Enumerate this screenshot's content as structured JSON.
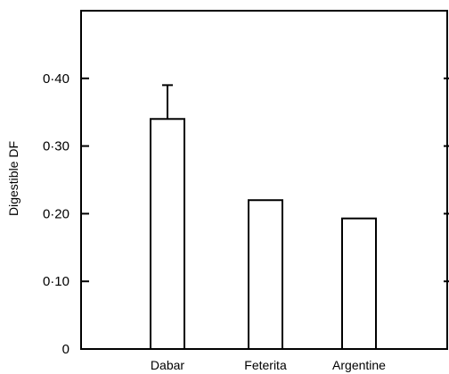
{
  "chart_data": {
    "type": "bar",
    "title": "",
    "xlabel": "",
    "ylabel": "Digestible DF",
    "categories": [
      "Dabar",
      "Feterita",
      "Argentine"
    ],
    "values": [
      0.34,
      0.22,
      0.193
    ],
    "error_bars": [
      0.05,
      null,
      null
    ],
    "ylim": [
      0,
      0.5
    ],
    "yticks": [
      0,
      0.1,
      0.2,
      0.3,
      0.4
    ],
    "ytick_labels": [
      "0",
      "0·10",
      "0·20",
      "0·30",
      "0·40"
    ],
    "grid": false,
    "bar_fill": "#ffffff",
    "bar_stroke": "#000000"
  }
}
